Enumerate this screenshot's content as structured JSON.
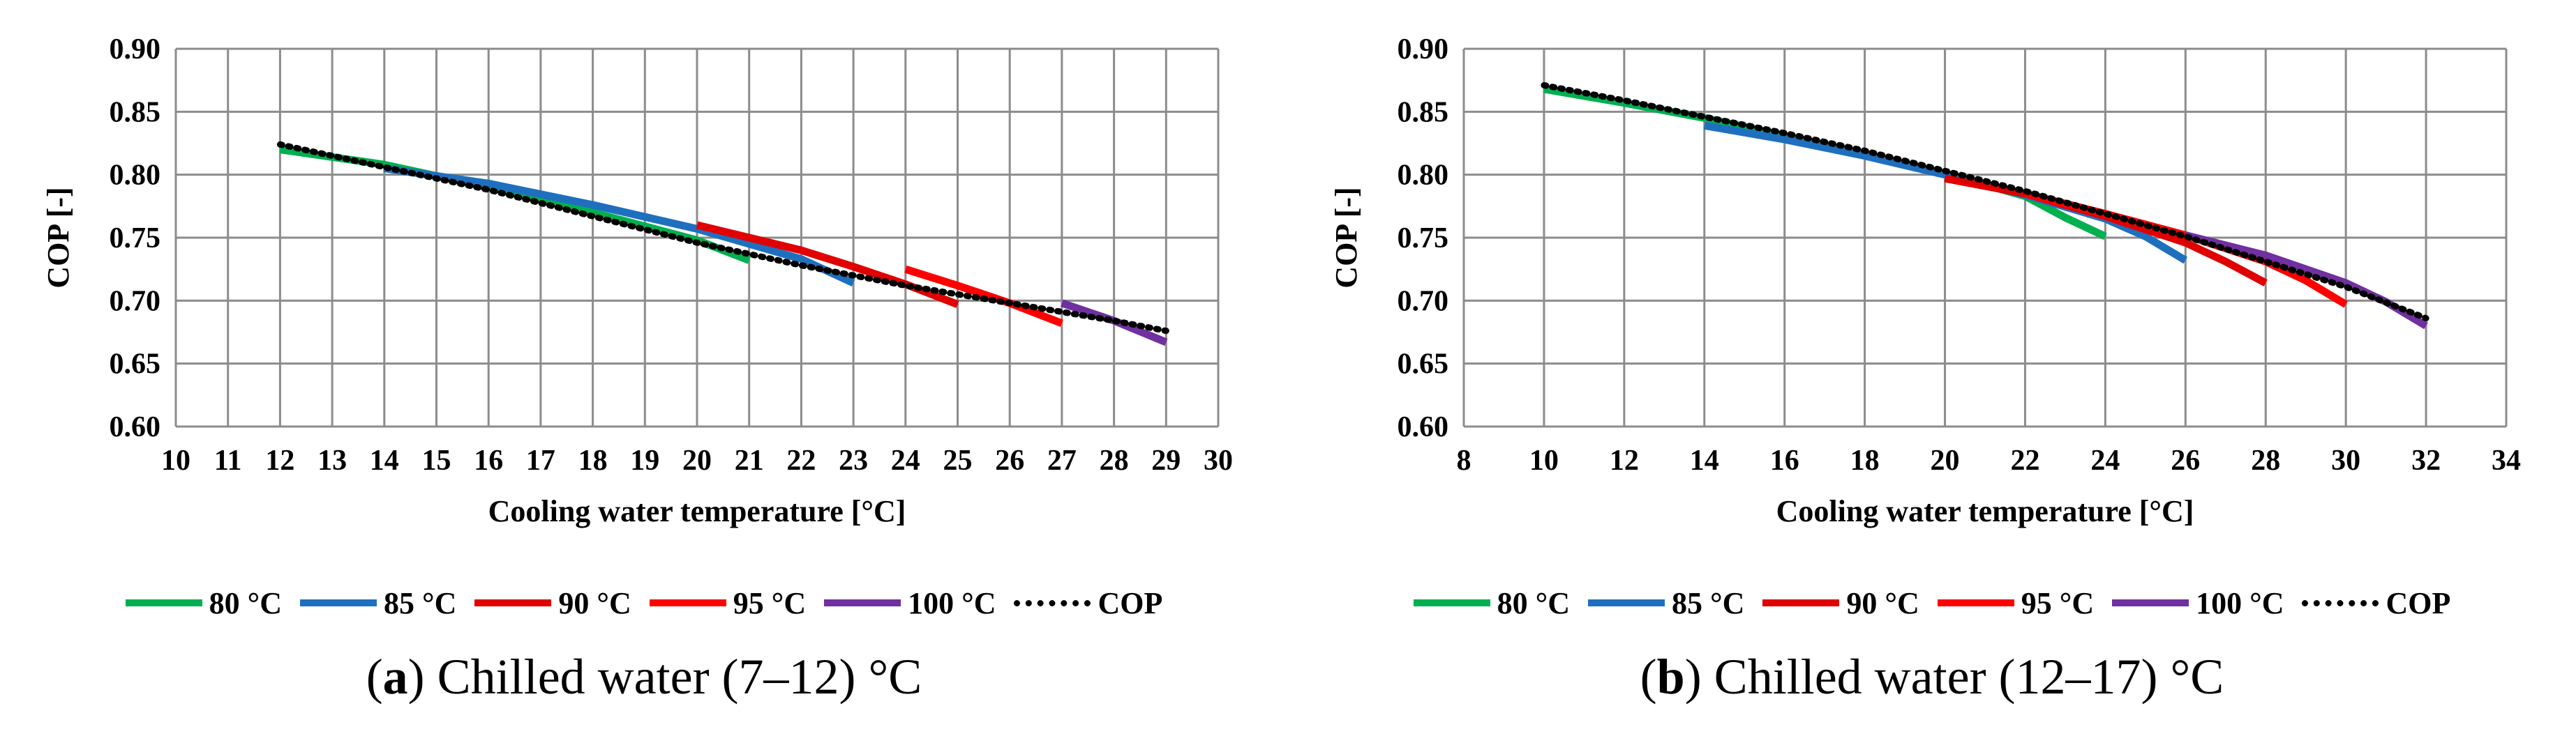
{
  "chart_data": [
    {
      "id": "a",
      "type": "line",
      "caption_letter": "a",
      "caption_text": "Chilled water (7–12) °C",
      "xlabel": "Cooling water temperature [°C]",
      "ylabel": "COP [-]",
      "xlim": [
        10,
        30
      ],
      "ylim": [
        0.6,
        0.9
      ],
      "xticks": [
        10,
        11,
        12,
        13,
        14,
        15,
        16,
        17,
        18,
        19,
        20,
        21,
        22,
        23,
        24,
        25,
        26,
        27,
        28,
        29,
        30
      ],
      "yticks": [
        "0.60",
        "0.65",
        "0.70",
        "0.75",
        "0.80",
        "0.85",
        "0.90"
      ],
      "grid": true,
      "legend_position": "bottom",
      "series": [
        {
          "name": "80 °C",
          "color": "#00b050",
          "style": "solid",
          "x": [
            12,
            14,
            16,
            18,
            20,
            21
          ],
          "y": [
            0.82,
            0.808,
            0.79,
            0.77,
            0.748,
            0.732
          ]
        },
        {
          "name": "85 °C",
          "color": "#1f6fbf",
          "style": "solid",
          "x": [
            14,
            16,
            18,
            20,
            22,
            23
          ],
          "y": [
            0.805,
            0.793,
            0.776,
            0.757,
            0.733,
            0.714
          ]
        },
        {
          "name": "90 °C",
          "color": "#e00000",
          "style": "solid",
          "x": [
            20,
            21,
            22,
            23,
            24,
            25
          ],
          "y": [
            0.76,
            0.75,
            0.74,
            0.727,
            0.713,
            0.697
          ]
        },
        {
          "name": "95 °C",
          "color": "#ff0000",
          "style": "solid",
          "x": [
            24,
            25,
            26,
            27
          ],
          "y": [
            0.725,
            0.712,
            0.698,
            0.682
          ]
        },
        {
          "name": "100 °C",
          "color": "#7030a0",
          "style": "solid",
          "x": [
            27,
            28,
            29
          ],
          "y": [
            0.698,
            0.684,
            0.667
          ]
        },
        {
          "name": "COP",
          "color": "#000000",
          "style": "dotted",
          "x": [
            12,
            14,
            16,
            18,
            20,
            22,
            24,
            26,
            28,
            29
          ],
          "y": [
            0.824,
            0.806,
            0.788,
            0.767,
            0.746,
            0.728,
            0.712,
            0.698,
            0.684,
            0.676
          ]
        }
      ]
    },
    {
      "id": "b",
      "type": "line",
      "caption_letter": "b",
      "caption_text": "Chilled water (12–17) °C",
      "xlabel": "Cooling water temperature [°C]",
      "ylabel": "COP [-]",
      "xlim": [
        8,
        34
      ],
      "ylim": [
        0.6,
        0.9
      ],
      "xticks": [
        8,
        10,
        12,
        14,
        16,
        18,
        20,
        22,
        24,
        26,
        28,
        30,
        32,
        34
      ],
      "yticks": [
        "0.60",
        "0.65",
        "0.70",
        "0.75",
        "0.80",
        "0.85",
        "0.90"
      ],
      "grid": true,
      "legend_position": "bottom",
      "series": [
        {
          "name": "80 °C",
          "color": "#00b050",
          "style": "solid",
          "x": [
            10,
            12,
            14,
            16,
            18,
            20,
            22,
            23,
            24
          ],
          "y": [
            0.868,
            0.857,
            0.845,
            0.831,
            0.816,
            0.801,
            0.783,
            0.766,
            0.751
          ]
        },
        {
          "name": "85 °C",
          "color": "#1f6fbf",
          "style": "solid",
          "x": [
            14,
            16,
            18,
            20,
            22,
            24,
            25,
            26
          ],
          "y": [
            0.839,
            0.828,
            0.815,
            0.8,
            0.784,
            0.765,
            0.751,
            0.732
          ]
        },
        {
          "name": "90 °C",
          "color": "#e00000",
          "style": "solid",
          "x": [
            20,
            22,
            24,
            26,
            27,
            28
          ],
          "y": [
            0.797,
            0.785,
            0.767,
            0.746,
            0.731,
            0.714
          ]
        },
        {
          "name": "95 °C",
          "color": "#ff0000",
          "style": "solid",
          "x": [
            22,
            24,
            26,
            28,
            29,
            30
          ],
          "y": [
            0.785,
            0.769,
            0.752,
            0.731,
            0.716,
            0.697
          ]
        },
        {
          "name": "100 °C",
          "color": "#7030a0",
          "style": "solid",
          "x": [
            26,
            28,
            30,
            31,
            32
          ],
          "y": [
            0.752,
            0.736,
            0.714,
            0.699,
            0.68
          ]
        },
        {
          "name": "COP",
          "color": "#000000",
          "style": "dotted",
          "x": [
            10,
            12,
            14,
            16,
            18,
            20,
            22,
            24,
            26,
            28,
            30,
            32
          ],
          "y": [
            0.871,
            0.859,
            0.846,
            0.833,
            0.819,
            0.803,
            0.787,
            0.769,
            0.751,
            0.731,
            0.711,
            0.686
          ]
        }
      ]
    }
  ]
}
